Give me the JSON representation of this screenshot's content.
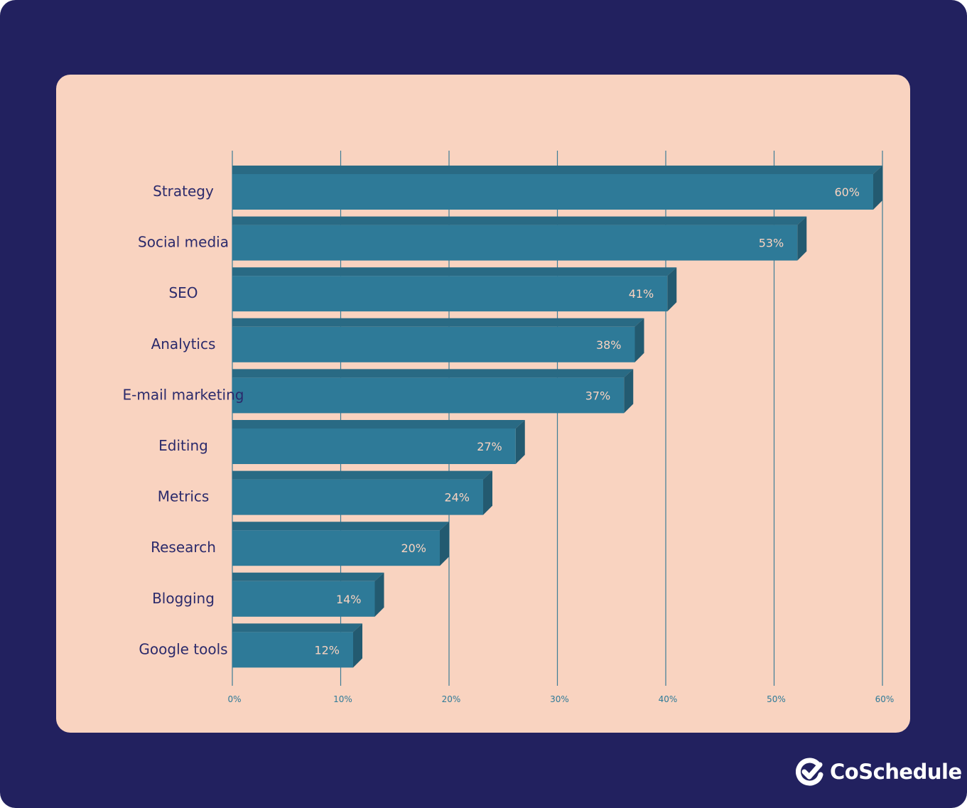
{
  "chart_data": {
    "type": "bar",
    "orientation": "horizontal",
    "categories": [
      "Strategy",
      "Social media",
      "SEO",
      "Analytics",
      "E-mail marketing",
      "Editing",
      "Metrics",
      "Research",
      "Blogging",
      "Google tools"
    ],
    "values": [
      60,
      53,
      41,
      38,
      37,
      27,
      24,
      20,
      14,
      12
    ],
    "data_labels": [
      "60%",
      "53%",
      "41%",
      "38%",
      "37%",
      "27%",
      "24%",
      "20%",
      "14%",
      "12%"
    ],
    "xlim": [
      0,
      60
    ],
    "xticks": [
      "0%",
      "10%",
      "20%",
      "30%",
      "40%",
      "50%",
      "60%"
    ],
    "grid": true,
    "title": "",
    "xlabel": "",
    "ylabel": "",
    "colors": {
      "bar_front": "#2e7a98",
      "bar_top": "#296a84",
      "bar_side": "#235a70",
      "grid": "#3e7d96",
      "category_text": "#2b2a6b",
      "tick_text": "#2e7a98",
      "value_text": "#f9d3c0",
      "panel": "#f9d3c0",
      "background": "#22215f"
    }
  },
  "brand": {
    "name": "CoSchedule",
    "icon": "check-circle-logo-icon"
  }
}
